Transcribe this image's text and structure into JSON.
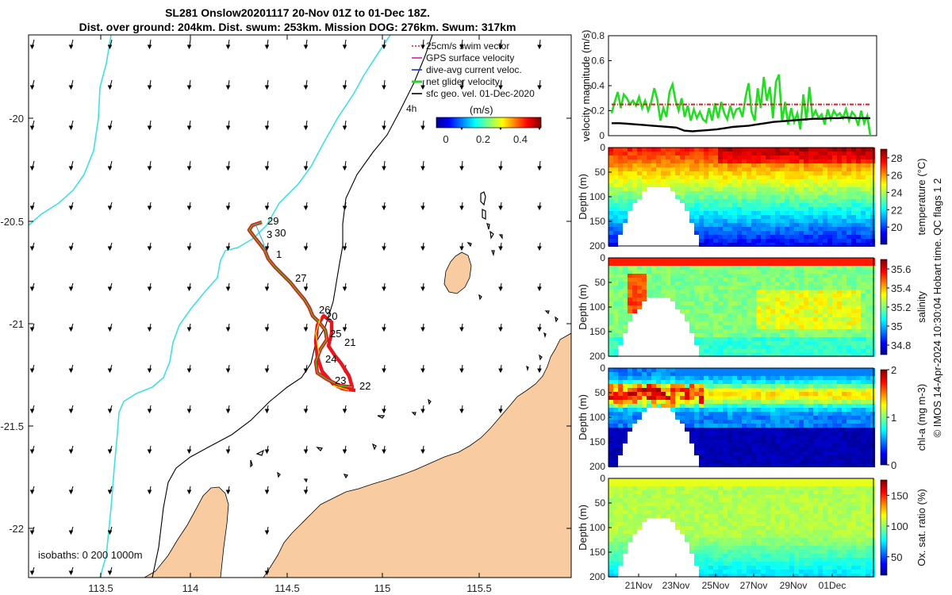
{
  "title": {
    "line1": "SL281 Onslow20201117 20-Nov 01Z to 01-Dec 18Z.",
    "line2": "Dist. over ground: 204km. Dist. swum: 253km. Mission DOG: 276km. Swum: 317km"
  },
  "map": {
    "legend": [
      {
        "label": "25cm/s swim vector",
        "color": "#e8141e"
      },
      {
        "label": "GPS surface velocity",
        "color": "#d218d2"
      },
      {
        "label": "dive-avg current veloc.",
        "color": "#1a2ed6"
      },
      {
        "label": "net glider velocity",
        "color": "#2ad12a"
      },
      {
        "label": "sfc geo. vel. 01-Dec-2020",
        "color": "#000000"
      }
    ],
    "legend_extra": "4h",
    "colorbar_label": "(m/s)",
    "colorbar_ticks": [
      "0",
      "0.2",
      "0.4"
    ],
    "isobaths_label": "isobaths: 0   200  1000m",
    "xticks": [
      "113.5",
      "114",
      "114.5",
      "115",
      "115.5"
    ],
    "yticks": [
      "-20",
      "-20.5",
      "-21",
      "-21.5",
      "-22"
    ],
    "day_labels": [
      "29",
      "30",
      "3",
      "1",
      "27",
      "26",
      "20",
      "25",
      "21",
      "24",
      "23",
      "22"
    ],
    "colors": {
      "land": "#f8cca0",
      "coast_isobath": "#40e0e0",
      "deep_isobath": "#000000"
    }
  },
  "chart_data": [
    {
      "type": "line",
      "title": "",
      "xlabel": "",
      "ylabel": "velocity magnitude (m/s)",
      "ylim": [
        0,
        0.8
      ],
      "yticks": [
        "0",
        "0.2",
        "0.4",
        "0.6",
        "0.8"
      ],
      "series": [
        {
          "name": "net glider velocity",
          "color": "#22dd22",
          "values": [
            0.18,
            0.27,
            0.35,
            0.22,
            0.33,
            0.3,
            0.25,
            0.28,
            0.24,
            0.31,
            0.22,
            0.28,
            0.2,
            0.27,
            0.38,
            0.29,
            0.12,
            0.22,
            0.15,
            0.35,
            0.41,
            0.28,
            0.2,
            0.3,
            0.15,
            0.24,
            0.12,
            0.21,
            0.14,
            0.19,
            0.13,
            0.11,
            0.22,
            0.12,
            0.26,
            0.14,
            0.27,
            0.18,
            0.13,
            0.24,
            0.15,
            0.21,
            0.22,
            0.15,
            0.31,
            0.42,
            0.19,
            0.12,
            0.38,
            0.22,
            0.47,
            0.28,
            0.39,
            0.14,
            0.43,
            0.49,
            0.11,
            0.27,
            0.09,
            0.22,
            0.11,
            0.18,
            0.05,
            0.33,
            0.12,
            0.39,
            0.15,
            0.2,
            0.14,
            0.17,
            0.09,
            0.21,
            0.13,
            0.2,
            0.16,
            0.18,
            0.14,
            0.21,
            0.12,
            0.19,
            0.16,
            0.08,
            0.2,
            0.1,
            0.16,
            0.0
          ]
        },
        {
          "name": "25cm/s swim vector",
          "color": "#e8141e",
          "values": [
            0.25,
            0.25
          ]
        },
        {
          "name": "sfc geo. vel.",
          "color": "#000000",
          "values": [
            0.1,
            0.1,
            0.095,
            0.09,
            0.085,
            0.08,
            0.075,
            0.07,
            0.065,
            0.04,
            0.035,
            0.04,
            0.045,
            0.05,
            0.06,
            0.07,
            0.075,
            0.08,
            0.09,
            0.1,
            0.11,
            0.115,
            0.12,
            0.125,
            0.13,
            0.135,
            0.135,
            0.14,
            0.14,
            0.145,
            0.14,
            0.14,
            0.14
          ]
        }
      ]
    },
    {
      "type": "heatmap",
      "ylabel": "Depth (m)",
      "clabel": "temperature (°C)",
      "yticks": [
        "0",
        "50",
        "100",
        "150",
        "200"
      ],
      "ylim": [
        0,
        200
      ],
      "clim": [
        18,
        29
      ],
      "cticks": [
        "20",
        "22",
        "24",
        "26",
        "28"
      ]
    },
    {
      "type": "heatmap",
      "ylabel": "Depth (m)",
      "clabel": "salinity",
      "yticks": [
        "0",
        "50",
        "100",
        "150",
        "200"
      ],
      "ylim": [
        0,
        200
      ],
      "clim": [
        34.7,
        35.7
      ],
      "cticks": [
        "34.8",
        "35",
        "35.2",
        "35.4",
        "35.6"
      ]
    },
    {
      "type": "heatmap",
      "ylabel": "Depth (m)",
      "clabel": "chl-a (mg m-3)",
      "yticks": [
        "0",
        "50",
        "100",
        "150",
        "200"
      ],
      "ylim": [
        0,
        200
      ],
      "clim": [
        0,
        2
      ],
      "cticks": [
        "0",
        "1",
        "2"
      ]
    },
    {
      "type": "heatmap",
      "ylabel": "Depth (m)",
      "clabel": "Ox. sat. ratio (%)",
      "yticks": [
        "0",
        "50",
        "100",
        "150",
        "200"
      ],
      "ylim": [
        0,
        200
      ],
      "clim": [
        20,
        175
      ],
      "cticks": [
        "50",
        "100",
        "150"
      ]
    }
  ],
  "time_axis": {
    "xticks": [
      "21Nov",
      "23Nov",
      "25Nov",
      "27Nov",
      "29Nov",
      "01Dec"
    ]
  },
  "side_label": "© IMOS 14-Apr-2024 10:30:04 Hobart time. QC flags 1  2"
}
